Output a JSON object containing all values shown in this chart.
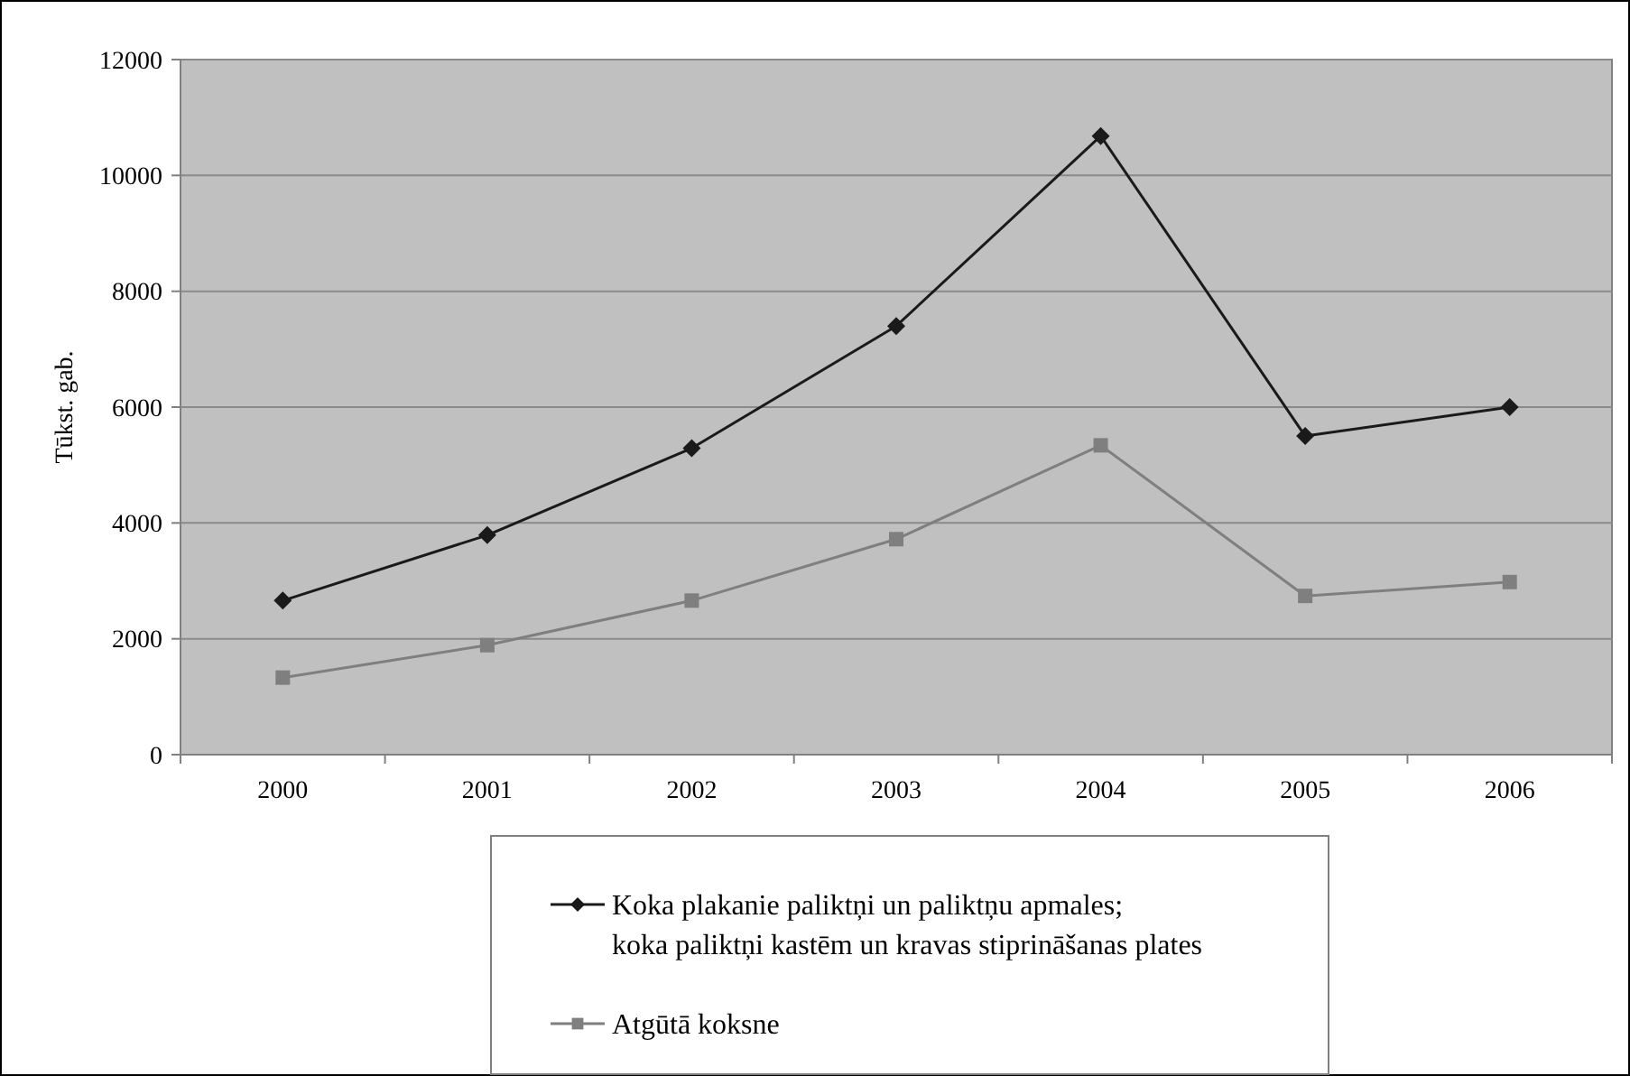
{
  "chart_data": {
    "type": "line",
    "ylabel": "Tūkst. gab.",
    "categories": [
      "2000",
      "2001",
      "2002",
      "2003",
      "2004",
      "2005",
      "2006"
    ],
    "ylim": [
      0,
      12000
    ],
    "yticks": [
      0,
      2000,
      4000,
      6000,
      8000,
      10000,
      12000
    ],
    "grid": "y",
    "legend": "bottom",
    "series": [
      {
        "name": "Koka plakanie paliktņi un paliktņu apmales;\nkoka paliktņi kastēm un kravas stiprināšanas plates",
        "color": "#1a1a1a",
        "marker": "diamond",
        "values": [
          2660,
          3790,
          5290,
          7400,
          10680,
          5500,
          6000
        ]
      },
      {
        "name": "Atgūtā koksne",
        "color": "#7f7f7f",
        "marker": "square",
        "values": [
          1330,
          1890,
          2660,
          3720,
          5340,
          2740,
          2980
        ]
      }
    ]
  }
}
